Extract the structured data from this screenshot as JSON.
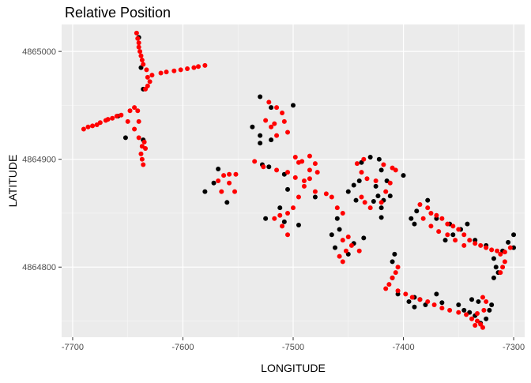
{
  "chart_data": {
    "type": "scatter",
    "title": "Relative Position",
    "xlabel": "LONGITUDE",
    "ylabel": "LATITUDE",
    "xlim": [
      -7710,
      -7290
    ],
    "ylim": [
      4864735,
      4865025
    ],
    "x_ticks": [
      -7700,
      -7600,
      -7500,
      -7400,
      -7300
    ],
    "x_tick_labels": [
      "-7700",
      "-7600",
      "-7500",
      "-7400",
      "-7300"
    ],
    "y_ticks": [
      4864800,
      4864900,
      4865000
    ],
    "y_tick_labels": [
      "4864800",
      "4864900",
      "4865000"
    ],
    "grid": true,
    "legend": "none",
    "series": [
      {
        "color": "#000000",
        "points": [
          [
            -7640,
            4865013
          ],
          [
            -7638,
            4864985
          ],
          [
            -7636,
            4864965
          ],
          [
            -7659,
            4864940
          ],
          [
            -7652,
            4864920
          ],
          [
            -7636,
            4864918
          ],
          [
            -7530,
            4864958
          ],
          [
            -7520,
            4864948
          ],
          [
            -7500,
            4864950
          ],
          [
            -7537,
            4864930
          ],
          [
            -7530,
            4864922
          ],
          [
            -7520,
            4864918
          ],
          [
            -7530,
            4864915
          ],
          [
            -7528,
            4864895
          ],
          [
            -7568,
            4864891
          ],
          [
            -7572,
            4864878
          ],
          [
            -7580,
            4864870
          ],
          [
            -7560,
            4864860
          ],
          [
            -7522,
            4864893
          ],
          [
            -7508,
            4864886
          ],
          [
            -7505,
            4864872
          ],
          [
            -7525,
            4864845
          ],
          [
            -7512,
            4864855
          ],
          [
            -7508,
            4864842
          ],
          [
            -7495,
            4864839
          ],
          [
            -7480,
            4864865
          ],
          [
            -7460,
            4864845
          ],
          [
            -7438,
            4864897
          ],
          [
            -7430,
            4864902
          ],
          [
            -7422,
            4864900
          ],
          [
            -7445,
            4864876
          ],
          [
            -7450,
            4864870
          ],
          [
            -7423,
            4864866
          ],
          [
            -7418,
            4864862
          ],
          [
            -7412,
            4864866
          ],
          [
            -7420,
            4864855
          ],
          [
            -7420,
            4864846
          ],
          [
            -7458,
            4864835
          ],
          [
            -7465,
            4864830
          ],
          [
            -7462,
            4864818
          ],
          [
            -7445,
            4864822
          ],
          [
            -7436,
            4864827
          ],
          [
            -7450,
            4864812
          ],
          [
            -7378,
            4864862
          ],
          [
            -7388,
            4864852
          ],
          [
            -7393,
            4864845
          ],
          [
            -7390,
            4864840
          ],
          [
            -7370,
            4864845
          ],
          [
            -7358,
            4864840
          ],
          [
            -7348,
            4864835
          ],
          [
            -7335,
            4864825
          ],
          [
            -7325,
            4864820
          ],
          [
            -7310,
            4864815
          ],
          [
            -7300,
            4864818
          ],
          [
            -7318,
            4864808
          ],
          [
            -7316,
            4864800
          ],
          [
            -7314,
            4864795
          ],
          [
            -7318,
            4864790
          ],
          [
            -7408,
            4864812
          ],
          [
            -7410,
            4864805
          ],
          [
            -7390,
            4864772
          ],
          [
            -7385,
            4864770
          ],
          [
            -7380,
            4864765
          ],
          [
            -7370,
            4864775
          ],
          [
            -7365,
            4864767
          ],
          [
            -7350,
            4864765
          ],
          [
            -7345,
            4864760
          ],
          [
            -7340,
            4864758
          ],
          [
            -7335,
            4864755
          ],
          [
            -7330,
            4864748
          ],
          [
            -7325,
            4864752
          ],
          [
            -7322,
            4864760
          ],
          [
            -7320,
            4864765
          ],
          [
            -7332,
            4864768
          ],
          [
            -7338,
            4864770
          ],
          [
            -7390,
            4864763
          ],
          [
            -7395,
            4864768
          ],
          [
            -7405,
            4864775
          ],
          [
            -7410,
            4864790
          ],
          [
            -7300,
            4864830
          ],
          [
            -7305,
            4864823
          ],
          [
            -7342,
            4864840
          ],
          [
            -7355,
            4864830
          ],
          [
            -7362,
            4864825
          ],
          [
            -7420,
            4864890
          ],
          [
            -7425,
            4864875
          ],
          [
            -7400,
            4864885
          ],
          [
            -7415,
            4864880
          ],
          [
            -7427,
            4864861
          ],
          [
            -7443,
            4864862
          ],
          [
            -7440,
            4864880
          ]
        ]
      },
      {
        "color": "#ff0000",
        "points": [
          [
            -7642,
            4865017
          ],
          [
            -7641,
            4865012
          ],
          [
            -7640,
            4865008
          ],
          [
            -7640,
            4865004
          ],
          [
            -7639,
            4865000
          ],
          [
            -7638,
            4864996
          ],
          [
            -7637,
            4864992
          ],
          [
            -7636,
            4864988
          ],
          [
            -7633,
            4864983
          ],
          [
            -7632,
            4864976
          ],
          [
            -7630,
            4864972
          ],
          [
            -7632,
            4864968
          ],
          [
            -7634,
            4864965
          ],
          [
            -7628,
            4864978
          ],
          [
            -7620,
            4864980
          ],
          [
            -7615,
            4864981
          ],
          [
            -7608,
            4864982
          ],
          [
            -7602,
            4864983
          ],
          [
            -7596,
            4864984
          ],
          [
            -7590,
            4864985
          ],
          [
            -7586,
            4864986
          ],
          [
            -7580,
            4864987
          ],
          [
            -7641,
            4864945
          ],
          [
            -7644,
            4864948
          ],
          [
            -7640,
            4864935
          ],
          [
            -7644,
            4864928
          ],
          [
            -7640,
            4864920
          ],
          [
            -7637,
            4864912
          ],
          [
            -7638,
            4864905
          ],
          [
            -7637,
            4864900
          ],
          [
            -7636,
            4864895
          ],
          [
            -7650,
            4864935
          ],
          [
            -7660,
            4864940
          ],
          [
            -7668,
            4864937
          ],
          [
            -7675,
            4864934
          ],
          [
            -7682,
            4864931
          ],
          [
            -7690,
            4864928
          ],
          [
            -7686,
            4864930
          ],
          [
            -7678,
            4864932
          ],
          [
            -7670,
            4864936
          ],
          [
            -7664,
            4864938
          ],
          [
            -7656,
            4864941
          ],
          [
            -7648,
            4864945
          ],
          [
            -7635,
            4864916
          ],
          [
            -7634,
            4864910
          ],
          [
            -7522,
            4864953
          ],
          [
            -7515,
            4864948
          ],
          [
            -7510,
            4864943
          ],
          [
            -7525,
            4864936
          ],
          [
            -7520,
            4864930
          ],
          [
            -7517,
            4864933
          ],
          [
            -7508,
            4864935
          ],
          [
            -7505,
            4864925
          ],
          [
            -7515,
            4864922
          ],
          [
            -7552,
            4864886
          ],
          [
            -7558,
            4864886
          ],
          [
            -7563,
            4864885
          ],
          [
            -7558,
            4864878
          ],
          [
            -7553,
            4864870
          ],
          [
            -7565,
            4864870
          ],
          [
            -7568,
            4864880
          ],
          [
            -7535,
            4864898
          ],
          [
            -7527,
            4864893
          ],
          [
            -7515,
            4864890
          ],
          [
            -7505,
            4864888
          ],
          [
            -7498,
            4864883
          ],
          [
            -7490,
            4864875
          ],
          [
            -7495,
            4864865
          ],
          [
            -7500,
            4864855
          ],
          [
            -7505,
            4864850
          ],
          [
            -7512,
            4864848
          ],
          [
            -7517,
            4864845
          ],
          [
            -7510,
            4864838
          ],
          [
            -7505,
            4864830
          ],
          [
            -7490,
            4864880
          ],
          [
            -7485,
            4864882
          ],
          [
            -7480,
            4864870
          ],
          [
            -7470,
            4864868
          ],
          [
            -7465,
            4864865
          ],
          [
            -7460,
            4864855
          ],
          [
            -7455,
            4864850
          ],
          [
            -7498,
            4864902
          ],
          [
            -7492,
            4864898
          ],
          [
            -7485,
            4864903
          ],
          [
            -7480,
            4864896
          ],
          [
            -7478,
            4864888
          ],
          [
            -7485,
            4864890
          ],
          [
            -7495,
            4864897
          ],
          [
            -7436,
            4864900
          ],
          [
            -7442,
            4864896
          ],
          [
            -7438,
            4864888
          ],
          [
            -7433,
            4864882
          ],
          [
            -7425,
            4864880
          ],
          [
            -7418,
            4864895
          ],
          [
            -7410,
            4864892
          ],
          [
            -7407,
            4864890
          ],
          [
            -7412,
            4864878
          ],
          [
            -7416,
            4864870
          ],
          [
            -7420,
            4864860
          ],
          [
            -7430,
            4864855
          ],
          [
            -7435,
            4864860
          ],
          [
            -7438,
            4864865
          ],
          [
            -7455,
            4864825
          ],
          [
            -7450,
            4864828
          ],
          [
            -7447,
            4864820
          ],
          [
            -7452,
            4864815
          ],
          [
            -7458,
            4864810
          ],
          [
            -7455,
            4864805
          ],
          [
            -7440,
            4864815
          ],
          [
            -7385,
            4864858
          ],
          [
            -7378,
            4864855
          ],
          [
            -7375,
            4864850
          ],
          [
            -7370,
            4864848
          ],
          [
            -7365,
            4864845
          ],
          [
            -7360,
            4864840
          ],
          [
            -7355,
            4864838
          ],
          [
            -7350,
            4864835
          ],
          [
            -7345,
            4864830
          ],
          [
            -7340,
            4864825
          ],
          [
            -7335,
            4864822
          ],
          [
            -7330,
            4864820
          ],
          [
            -7325,
            4864818
          ],
          [
            -7320,
            4864816
          ],
          [
            -7315,
            4864815
          ],
          [
            -7312,
            4864812
          ],
          [
            -7308,
            4864814
          ],
          [
            -7303,
            4864818
          ],
          [
            -7308,
            4864805
          ],
          [
            -7310,
            4864800
          ],
          [
            -7312,
            4864795
          ],
          [
            -7382,
            4864845
          ],
          [
            -7375,
            4864838
          ],
          [
            -7368,
            4864833
          ],
          [
            -7360,
            4864830
          ],
          [
            -7353,
            4864825
          ],
          [
            -7345,
            4864820
          ],
          [
            -7405,
            4864800
          ],
          [
            -7407,
            4864795
          ],
          [
            -7410,
            4864790
          ],
          [
            -7413,
            4864784
          ],
          [
            -7416,
            4864780
          ],
          [
            -7405,
            4864778
          ],
          [
            -7398,
            4864775
          ],
          [
            -7392,
            4864772
          ],
          [
            -7385,
            4864770
          ],
          [
            -7378,
            4864768
          ],
          [
            -7372,
            4864765
          ],
          [
            -7365,
            4864762
          ],
          [
            -7358,
            4864760
          ],
          [
            -7350,
            4864758
          ],
          [
            -7343,
            4864756
          ],
          [
            -7338,
            4864752
          ],
          [
            -7333,
            4864750
          ],
          [
            -7330,
            4864747
          ],
          [
            -7328,
            4864744
          ],
          [
            -7335,
            4864746
          ],
          [
            -7327,
            4864760
          ],
          [
            -7325,
            4864768
          ],
          [
            -7328,
            4864772
          ],
          [
            -7333,
            4864757
          ]
        ]
      }
    ]
  }
}
